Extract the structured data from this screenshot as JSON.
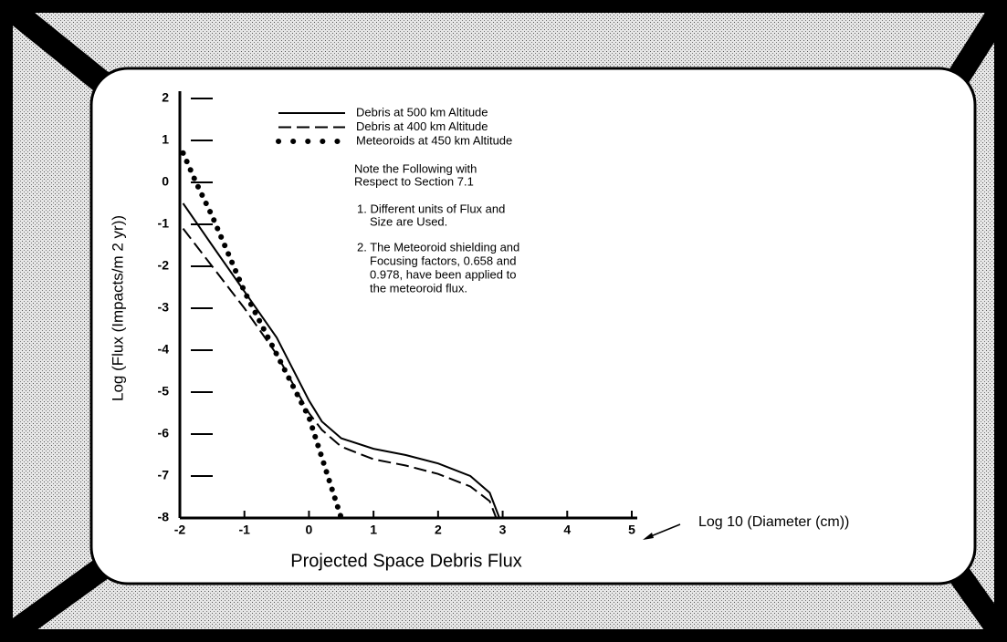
{
  "chart_data": {
    "type": "line",
    "title": "Projected Space Debris Flux",
    "y_label": "Log (Flux (Impacts/m 2 yr))",
    "x_annotation": "Log 10 (Diameter (cm))",
    "xlim": [
      -2,
      5
    ],
    "ylim": [
      -8,
      2
    ],
    "xticks": [
      -2,
      -1,
      0,
      1,
      2,
      3,
      4,
      5
    ],
    "yticks": [
      -8,
      -7,
      -6,
      -5,
      -4,
      -3,
      -2,
      -1,
      0,
      1,
      2
    ],
    "series": [
      {
        "name": "Debris at 500 km Altitude",
        "style": "solid",
        "color": "#000000",
        "x": [
          -1.95,
          -1.5,
          -1,
          -0.5,
          0,
          0.2,
          0.5,
          1,
          1.5,
          2,
          2.5,
          2.8,
          2.95
        ],
        "values": [
          -0.5,
          -1.5,
          -2.6,
          -3.7,
          -5.2,
          -5.7,
          -6.1,
          -6.35,
          -6.5,
          -6.7,
          -7.0,
          -7.4,
          -8
        ]
      },
      {
        "name": "Debris at 400 km Altitude",
        "style": "dashed",
        "color": "#000000",
        "x": [
          -1.95,
          -1.5,
          -1,
          -0.5,
          0,
          0.2,
          0.5,
          1,
          1.5,
          2,
          2.5,
          2.8,
          2.9
        ],
        "values": [
          -1.1,
          -2.0,
          -3.0,
          -4.1,
          -5.5,
          -5.9,
          -6.3,
          -6.6,
          -6.75,
          -6.95,
          -7.25,
          -7.6,
          -8
        ]
      },
      {
        "name": "Meteoroids at 450 km Altitude",
        "style": "dotted",
        "color": "#000000",
        "x": [
          -1.95,
          -1.75,
          -1.5,
          -1,
          -0.5,
          0,
          0.25,
          0.5
        ],
        "values": [
          0.7,
          0,
          -0.8,
          -2.6,
          -4.1,
          -5.6,
          -6.8,
          -8
        ]
      }
    ],
    "notes": [
      "Note the Following with",
      "Respect to Section 7.1",
      "1. Different units of Flux and",
      "Size are Used.",
      "2. The Meteoroid shielding and",
      "Focusing factors, 0.658 and",
      "0.978, have been applied to",
      "the meteoroid flux."
    ]
  }
}
